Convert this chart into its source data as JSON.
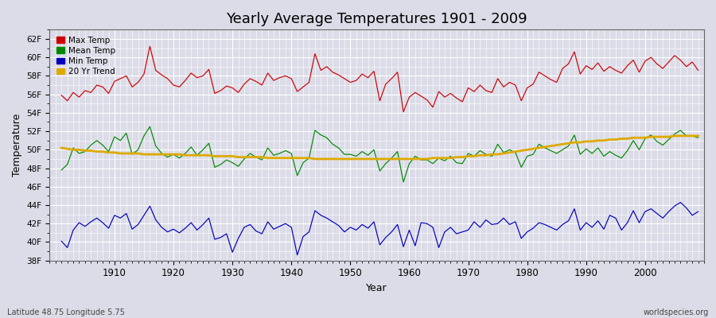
{
  "title": "Yearly Average Temperatures 1901 - 2009",
  "xlabel": "Year",
  "ylabel": "Temperature",
  "start_year": 1901,
  "end_year": 2009,
  "background_color": "#dcdce8",
  "plot_bg_color": "#dcdce8",
  "grid_color": "#ffffff",
  "max_temp_color": "#cc0000",
  "mean_temp_color": "#008800",
  "min_temp_color": "#0000bb",
  "trend_color": "#ddaa00",
  "ylim_min": 38,
  "ylim_max": 63,
  "yticks": [
    38,
    40,
    42,
    44,
    46,
    48,
    50,
    52,
    54,
    56,
    58,
    60,
    62
  ],
  "legend_labels": [
    "Max Temp",
    "Mean Temp",
    "Min Temp",
    "20 Yr Trend"
  ],
  "bottom_left_text": "Latitude 48.75 Longitude 5.75",
  "bottom_right_text": "worldspecies.org",
  "max_temps": [
    55.9,
    55.3,
    56.2,
    55.7,
    56.4,
    56.2,
    57.0,
    56.8,
    56.1,
    57.4,
    57.7,
    58.0,
    56.8,
    57.3,
    58.2,
    61.2,
    58.6,
    58.1,
    57.7,
    57.0,
    56.8,
    57.5,
    58.3,
    57.8,
    58.0,
    58.7,
    56.1,
    56.4,
    56.9,
    56.7,
    56.2,
    57.1,
    57.7,
    57.4,
    57.0,
    58.3,
    57.5,
    57.8,
    58.0,
    57.7,
    56.3,
    56.8,
    57.3,
    60.4,
    58.6,
    59.0,
    58.4,
    58.1,
    57.7,
    57.3,
    57.5,
    58.2,
    57.8,
    58.5,
    55.3,
    57.1,
    57.7,
    58.4,
    54.1,
    55.7,
    56.2,
    55.8,
    55.4,
    54.6,
    56.3,
    55.7,
    56.1,
    55.6,
    55.2,
    56.7,
    56.3,
    57.0,
    56.4,
    56.2,
    57.7,
    56.8,
    57.3,
    57.0,
    55.3,
    56.7,
    57.1,
    58.4,
    58.0,
    57.6,
    57.3,
    58.8,
    59.3,
    60.6,
    58.2,
    59.1,
    58.7,
    59.4,
    58.5,
    59.0,
    58.6,
    58.3,
    59.1,
    59.7,
    58.4,
    59.6,
    60.0,
    59.3,
    58.8,
    59.5,
    60.2,
    59.7,
    59.0,
    59.5,
    58.6
  ],
  "mean_temps": [
    47.8,
    48.4,
    50.2,
    49.6,
    49.8,
    50.5,
    51.0,
    50.5,
    49.8,
    51.4,
    51.0,
    51.8,
    49.5,
    50.0,
    51.5,
    52.5,
    50.4,
    49.6,
    49.2,
    49.5,
    49.1,
    49.6,
    50.3,
    49.4,
    50.0,
    50.7,
    48.1,
    48.4,
    48.9,
    48.6,
    48.2,
    49.0,
    49.6,
    49.2,
    48.9,
    50.2,
    49.4,
    49.6,
    49.9,
    49.6,
    47.2,
    48.6,
    49.1,
    52.1,
    51.6,
    51.3,
    50.6,
    50.2,
    49.5,
    49.5,
    49.3,
    49.8,
    49.4,
    50.0,
    47.7,
    48.5,
    49.1,
    49.8,
    46.5,
    48.5,
    49.3,
    48.9,
    48.9,
    48.5,
    49.1,
    48.8,
    49.3,
    48.6,
    48.5,
    49.6,
    49.3,
    49.9,
    49.5,
    49.3,
    50.6,
    49.7,
    50.0,
    49.7,
    48.1,
    49.3,
    49.5,
    50.6,
    50.2,
    49.9,
    49.6,
    50.0,
    50.4,
    51.6,
    49.5,
    50.1,
    49.6,
    50.2,
    49.3,
    49.8,
    49.4,
    49.1,
    49.9,
    51.0,
    50.0,
    51.2,
    51.6,
    50.9,
    50.5,
    51.1,
    51.7,
    52.1,
    51.5,
    51.5,
    51.3
  ],
  "trend_temps": [
    50.2,
    50.1,
    50.0,
    50.0,
    49.9,
    49.9,
    49.8,
    49.8,
    49.7,
    49.7,
    49.6,
    49.6,
    49.6,
    49.6,
    49.5,
    49.5,
    49.5,
    49.5,
    49.5,
    49.5,
    49.5,
    49.4,
    49.4,
    49.4,
    49.4,
    49.4,
    49.3,
    49.3,
    49.3,
    49.3,
    49.2,
    49.2,
    49.2,
    49.2,
    49.2,
    49.1,
    49.1,
    49.1,
    49.1,
    49.1,
    49.1,
    49.1,
    49.1,
    49.0,
    49.0,
    49.0,
    49.0,
    49.0,
    49.0,
    49.0,
    49.0,
    49.0,
    49.0,
    49.0,
    49.0,
    49.0,
    49.0,
    49.0,
    49.0,
    49.0,
    49.0,
    49.0,
    49.0,
    49.1,
    49.1,
    49.1,
    49.1,
    49.2,
    49.2,
    49.3,
    49.3,
    49.4,
    49.4,
    49.5,
    49.5,
    49.6,
    49.7,
    49.8,
    49.9,
    50.0,
    50.1,
    50.2,
    50.3,
    50.4,
    50.5,
    50.6,
    50.7,
    50.8,
    50.8,
    50.9,
    50.9,
    51.0,
    51.0,
    51.1,
    51.1,
    51.2,
    51.2,
    51.3,
    51.3,
    51.3,
    51.4,
    51.4,
    51.4,
    51.4,
    51.5,
    51.5,
    51.5,
    51.5,
    51.5
  ],
  "min_temps": [
    40.1,
    39.4,
    41.3,
    42.1,
    41.7,
    42.2,
    42.6,
    42.1,
    41.5,
    42.9,
    42.6,
    43.1,
    41.4,
    41.9,
    42.9,
    43.9,
    42.4,
    41.6,
    41.1,
    41.4,
    41.0,
    41.5,
    42.1,
    41.3,
    41.9,
    42.6,
    40.3,
    40.5,
    40.9,
    38.9,
    40.4,
    41.6,
    41.9,
    41.2,
    40.9,
    42.2,
    41.4,
    41.7,
    42.0,
    41.6,
    38.6,
    40.6,
    41.1,
    43.4,
    42.9,
    42.6,
    42.2,
    41.8,
    41.1,
    41.6,
    41.3,
    41.9,
    41.5,
    42.2,
    39.7,
    40.5,
    41.1,
    41.9,
    39.5,
    41.3,
    39.6,
    42.1,
    42.0,
    41.6,
    39.4,
    41.1,
    41.6,
    40.9,
    41.1,
    41.3,
    42.2,
    41.6,
    42.4,
    41.9,
    42.0,
    42.6,
    41.9,
    42.2,
    40.4,
    41.1,
    41.5,
    42.1,
    41.9,
    41.6,
    41.3,
    41.9,
    42.3,
    43.6,
    41.3,
    42.1,
    41.6,
    42.3,
    41.4,
    42.9,
    42.6,
    41.3,
    42.1,
    43.4,
    42.1,
    43.3,
    43.6,
    43.1,
    42.6,
    43.3,
    43.9,
    44.3,
    43.7,
    42.9,
    43.3
  ]
}
